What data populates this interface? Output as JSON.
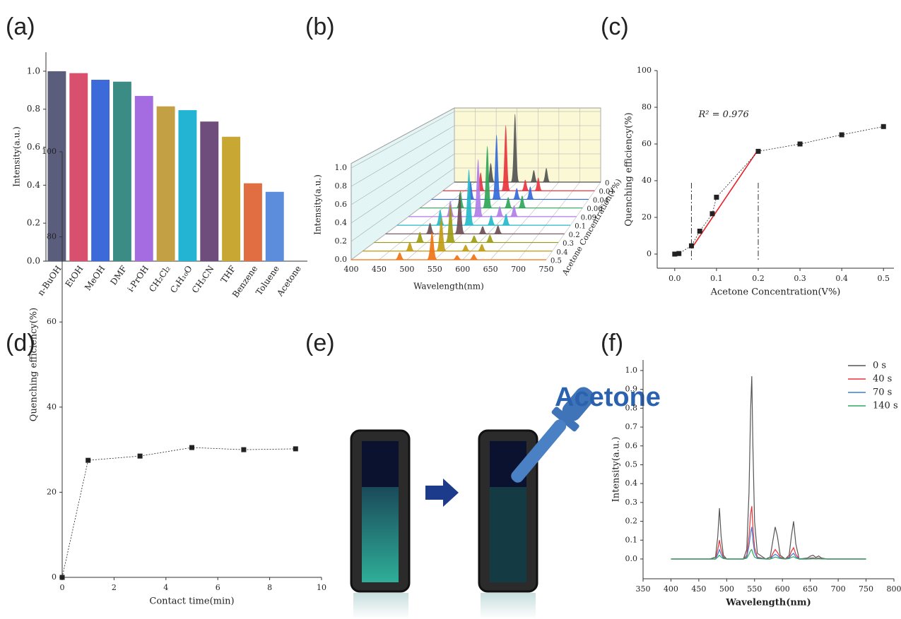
{
  "chart_data": [
    {
      "type": "bar",
      "panel_label": "(a)",
      "ylabel": "Intensity(a.u.)",
      "categories": [
        "n-BuOH",
        "EtOH",
        "MeOH",
        "DMF",
        "i-PrOH",
        "CH₂Cl₂",
        "C₄H₁₀O",
        "CH₃CN",
        "THF",
        "Benzene",
        "Toluene",
        "Acetone"
      ],
      "values": [
        1.0,
        0.99,
        0.955,
        0.945,
        0.87,
        0.815,
        0.795,
        0.735,
        0.655,
        0.41,
        0.365,
        0
      ],
      "colors": [
        "#5a5e7c",
        "#d8506e",
        "#3c6ad8",
        "#3a8c84",
        "#a46ce0",
        "#c4a044",
        "#22b4d2",
        "#6e4c7c",
        "#c8a832",
        "#e06e42",
        "#5c8cdc",
        "#8899cc"
      ],
      "ylim": [
        0,
        1.1
      ],
      "yticks": [
        {
          "value": 0,
          "label": "0.0"
        },
        0.2,
        0.4,
        0.6,
        0.8,
        {
          "value": 1,
          "label": "1.0"
        }
      ]
    },
    {
      "type": "waterfall",
      "panel_label": "(b)",
      "xlabel": "Wavelength(nm)",
      "ylabel": "Intensity(a.u.)",
      "zlabel": "Acetone Concentration(V%)",
      "x": [
        487,
        545,
        590,
        620
      ],
      "xlim": [
        400,
        750
      ],
      "xticks": [
        400,
        450,
        500,
        550,
        600,
        650,
        700,
        750
      ],
      "ylim": [
        0,
        1.05
      ],
      "yticks": [
        {
          "value": 0,
          "label": "0.0"
        },
        0.2,
        0.4,
        0.6,
        0.8,
        {
          "value": 1,
          "label": "1.0"
        }
      ],
      "series": [
        {
          "name": "0",
          "color": "#505050",
          "values": [
            0.27,
            0.97,
            0.17,
            0.2
          ]
        },
        {
          "name": "0.01",
          "color": "#e8303a",
          "values": [
            0.25,
            0.9,
            0.15,
            0.18
          ]
        },
        {
          "name": "0.04",
          "color": "#2f67d8",
          "values": [
            0.24,
            0.86,
            0.15,
            0.17
          ]
        },
        {
          "name": "0.06",
          "color": "#2aa454",
          "values": [
            0.22,
            0.8,
            0.14,
            0.16
          ]
        },
        {
          "name": "0.09",
          "color": "#b07ae8",
          "values": [
            0.2,
            0.72,
            0.13,
            0.14
          ]
        },
        {
          "name": "0.1",
          "color": "#22b8c8",
          "values": [
            0.19,
            0.68,
            0.12,
            0.14
          ]
        },
        {
          "name": "0.2",
          "color": "#6a4a50",
          "values": [
            0.13,
            0.48,
            0.09,
            0.1
          ]
        },
        {
          "name": "0.3",
          "color": "#9a9a10",
          "values": [
            0.12,
            0.44,
            0.08,
            0.09
          ]
        },
        {
          "name": "0.4",
          "color": "#c09a10",
          "values": [
            0.1,
            0.38,
            0.07,
            0.08
          ]
        },
        {
          "name": "0.5",
          "color": "#f07010",
          "values": [
            0.08,
            0.3,
            0.05,
            0.06
          ]
        }
      ]
    },
    {
      "type": "line",
      "panel_label": "(c)",
      "xlabel": "Acetone Concentration(V%)",
      "ylabel": "Quenching efficiency(%)",
      "x": [
        0,
        0.01,
        0.04,
        0.06,
        0.09,
        0.1,
        0.2,
        0.3,
        0.4,
        0.5
      ],
      "values": [
        0,
        0.3,
        4.5,
        12.5,
        22,
        31,
        56,
        60,
        65,
        69.5
      ],
      "color": "#222222",
      "markers": true,
      "line_style": "dotted",
      "fit_line": {
        "x": [
          0.04,
          0.2
        ],
        "y": [
          3,
          57
        ],
        "color": "#e8202a"
      },
      "guide_lines_x": [
        0.04,
        0.2
      ],
      "annotation": "R² = 0.976",
      "xlim": [
        -0.042,
        0.525
      ],
      "xticks": [
        {
          "value": 0,
          "label": "0.0"
        },
        0.1,
        0.2,
        0.3,
        0.4,
        0.5
      ],
      "ylim": [
        -7.7,
        100
      ],
      "yticks": [
        0,
        20,
        40,
        60,
        80,
        100
      ]
    },
    {
      "type": "line",
      "panel_label": "(d)",
      "xlabel": "Contact time(min)",
      "ylabel": "Quenching efficiency(%)",
      "x": [
        0,
        1,
        3,
        5,
        7,
        9
      ],
      "values": [
        0,
        27.5,
        28.5,
        30.5,
        30,
        30.2
      ],
      "color": "#222222",
      "markers": true,
      "line_style": "dotted",
      "xlim": [
        0,
        10
      ],
      "xticks": [
        0,
        2,
        4,
        6,
        8,
        10
      ],
      "ylim": [
        0,
        100
      ],
      "yticks": [
        0,
        20,
        40,
        60,
        80,
        100
      ]
    },
    {
      "type": "line",
      "panel_label": "(f)",
      "xlabel": "Wavelength(nm)",
      "ylabel": "Intensity(a.u.)",
      "legend": "upper right",
      "x": [
        400,
        470,
        480,
        484,
        487,
        490,
        494,
        500,
        530,
        536,
        540,
        543,
        545,
        547,
        550,
        555,
        570,
        578,
        583,
        587,
        591,
        596,
        605,
        612,
        616,
        620,
        624,
        630,
        645,
        650,
        655,
        660,
        665,
        670,
        680,
        750
      ],
      "series": [
        {
          "name": "0 s",
          "color": "#555555",
          "values": [
            0,
            0,
            0.01,
            0.12,
            0.27,
            0.12,
            0.02,
            0,
            0,
            0.05,
            0.35,
            0.8,
            0.97,
            0.6,
            0.2,
            0.03,
            0,
            0.01,
            0.1,
            0.17,
            0.12,
            0.02,
            0,
            0.02,
            0.12,
            0.2,
            0.08,
            0,
            0.005,
            0.015,
            0.02,
            0.008,
            0.016,
            0.005,
            0,
            0
          ]
        },
        {
          "name": "40 s",
          "color": "#e8333a",
          "values": [
            0,
            0,
            0,
            0.05,
            0.1,
            0.05,
            0.01,
            0,
            0,
            0.02,
            0.12,
            0.24,
            0.28,
            0.17,
            0.06,
            0.01,
            0,
            0,
            0.03,
            0.05,
            0.035,
            0.01,
            0,
            0.01,
            0.04,
            0.06,
            0.025,
            0,
            0,
            0.005,
            0.006,
            0.003,
            0.005,
            0.002,
            0,
            0
          ]
        },
        {
          "name": "70 s",
          "color": "#3c7bd8",
          "values": [
            0,
            0,
            0,
            0.025,
            0.05,
            0.025,
            0.005,
            0,
            0,
            0.01,
            0.07,
            0.14,
            0.17,
            0.1,
            0.035,
            0.005,
            0,
            0,
            0.015,
            0.025,
            0.018,
            0.004,
            0,
            0.005,
            0.02,
            0.03,
            0.012,
            0,
            0,
            0.002,
            0.003,
            0.001,
            0.002,
            0.001,
            0,
            0
          ]
        },
        {
          "name": "140 s",
          "color": "#2ea860",
          "values": [
            0,
            0,
            0,
            0.01,
            0.02,
            0.01,
            0.002,
            0,
            0,
            0.004,
            0.025,
            0.045,
            0.05,
            0.03,
            0.01,
            0.002,
            0,
            0,
            0.005,
            0.01,
            0.007,
            0.002,
            0,
            0.002,
            0.008,
            0.012,
            0.005,
            0,
            0,
            0,
            0.001,
            0,
            0.001,
            0,
            0,
            0
          ]
        }
      ],
      "xlim": [
        350,
        800
      ],
      "xticks": [
        350,
        400,
        450,
        500,
        550,
        600,
        650,
        700,
        750,
        800
      ],
      "ylim": [
        -0.105,
        1.056
      ],
      "yticks": [
        {
          "value": 0,
          "label": "0.0"
        },
        0.1,
        0.2,
        0.3,
        0.4,
        0.5,
        0.6,
        0.7,
        0.8,
        0.9,
        {
          "value": 1,
          "label": "1.0"
        }
      ]
    }
  ],
  "panel_e": {
    "panel_label": "(e)",
    "text": "Acetone"
  }
}
